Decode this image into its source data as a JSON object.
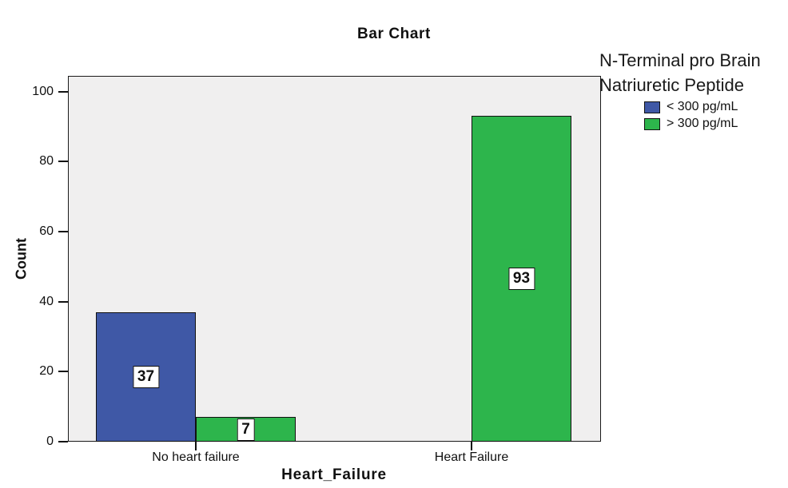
{
  "chart_data": {
    "type": "bar",
    "title": "Bar Chart",
    "xlabel": "Heart_Failure",
    "ylabel": "Count",
    "categories": [
      "No heart failure",
      "Heart Failure"
    ],
    "series": [
      {
        "name": "< 300 pg/mL",
        "color": "#3F58A6",
        "values": [
          37,
          0
        ]
      },
      {
        "name": "> 300 pg/mL",
        "color": "#2DB54C",
        "values": [
          7,
          93
        ]
      }
    ],
    "yticks": [
      0,
      20,
      40,
      60,
      80,
      100
    ],
    "ylim": [
      0,
      104.5
    ],
    "grid": false,
    "bar_value_labels": true,
    "plot_background": "#F0EFEF",
    "legend": {
      "position": "right",
      "title_lines": [
        "N-Terminal pro Brain",
        "Natriuretic Peptide"
      ],
      "entries": [
        {
          "label": "< 300 pg/mL",
          "color": "#3F58A6"
        },
        {
          "label": "> 300 pg/mL",
          "color": "#2DB54C"
        }
      ]
    }
  }
}
